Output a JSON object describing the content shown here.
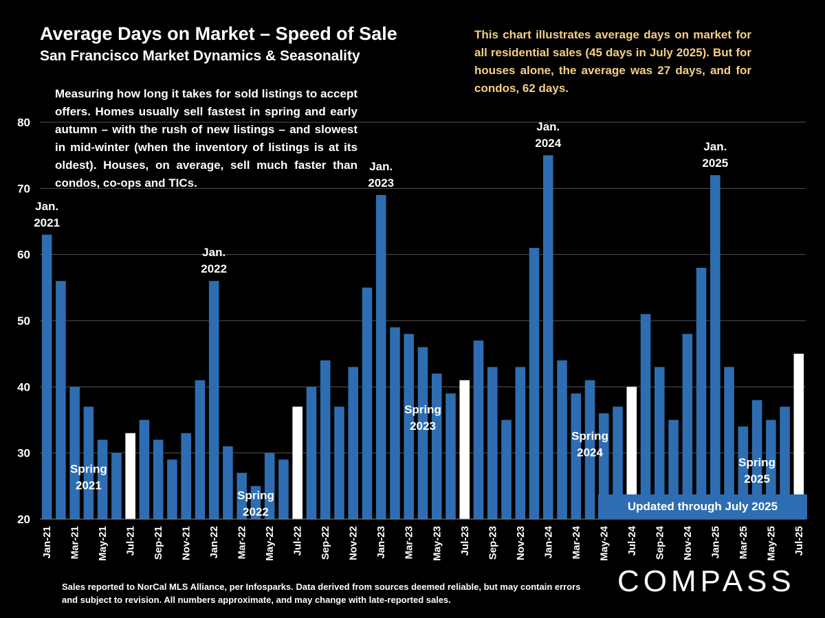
{
  "header": {
    "title": "Average Days on Market – Speed of Sale",
    "subtitle": "San Francisco Market Dynamics & Seasonality"
  },
  "summary": "This chart illustrates average days on market for all residential sales (45 days in July 2025). But for houses alone, the average was 27 days, and for condos, 62 days.",
  "description": "Measuring how long it takes for sold listings to accept offers. Homes usually sell fastest in spring and early autumn – with the rush of new listings – and slowest in mid-winter (when the inventory of listings is at its oldest). Houses, on average, sell much faster than condos, co-ops and TICs.",
  "footnote": "Sales reported to NorCal MLS Alliance, per Infosparks. Data derived from sources deemed reliable, but may contain errors and subject to revision. All numbers approximate, and may change with late-reported sales.",
  "logo": "COMPASS",
  "updated_label": "Updated through July 2025",
  "colors": {
    "bar": "#2e6db1",
    "highlight": "#ffffff",
    "summary_text": "#f6cf84",
    "background": "#000000",
    "grid": "#555555"
  },
  "chart_data": {
    "type": "bar",
    "ylim": [
      20,
      80
    ],
    "yticks": [
      20,
      30,
      40,
      50,
      60,
      70,
      80
    ],
    "grid": true,
    "categories": [
      "Jan-21",
      "Feb-21",
      "Mar-21",
      "Apr-21",
      "May-21",
      "Jun-21",
      "Jul-21",
      "Aug-21",
      "Sep-21",
      "Oct-21",
      "Nov-21",
      "Dec-21",
      "Jan-22",
      "Feb-22",
      "Mar-22",
      "Apr-22",
      "May-22",
      "Jun-22",
      "Jul-22",
      "Aug-22",
      "Sep-22",
      "Oct-22",
      "Nov-22",
      "Dec-22",
      "Jan-23",
      "Feb-23",
      "Mar-23",
      "Apr-23",
      "May-23",
      "Jun-23",
      "Jul-23",
      "Aug-23",
      "Sep-23",
      "Oct-23",
      "Nov-23",
      "Dec-23",
      "Jan-24",
      "Feb-24",
      "Mar-24",
      "Apr-24",
      "May-24",
      "Jun-24",
      "Jul-24",
      "Aug-24",
      "Sep-24",
      "Oct-24",
      "Nov-24",
      "Dec-24",
      "Jan-25",
      "Feb-25",
      "Mar-25",
      "Apr-25",
      "May-25",
      "Jun-25",
      "Jul-25"
    ],
    "values": [
      63,
      56,
      40,
      37,
      32,
      30,
      33,
      35,
      32,
      29,
      33,
      41,
      56,
      31,
      27,
      25,
      30,
      29,
      37,
      40,
      44,
      37,
      43,
      55,
      69,
      49,
      48,
      46,
      42,
      39,
      41,
      47,
      43,
      35,
      43,
      61,
      75,
      44,
      39,
      41,
      36,
      37,
      40,
      51,
      43,
      35,
      48,
      58,
      72,
      43,
      34,
      38,
      35,
      37,
      45
    ],
    "highlight_categories": [
      "Jul-21",
      "Jul-22",
      "Jul-23",
      "Jul-24",
      "Jul-25"
    ],
    "annotations": [
      {
        "lines": [
          "Jan.",
          "2021"
        ],
        "category": "Jan-21",
        "placement": "above"
      },
      {
        "lines": [
          "Jan.",
          "2022"
        ],
        "category": "Jan-22",
        "placement": "above"
      },
      {
        "lines": [
          "Jan.",
          "2023"
        ],
        "category": "Jan-23",
        "placement": "above"
      },
      {
        "lines": [
          "Jan.",
          "2024"
        ],
        "category": "Jan-24",
        "placement": "above"
      },
      {
        "lines": [
          "Jan.",
          "2025"
        ],
        "category": "Jan-25",
        "placement": "above"
      },
      {
        "lines": [
          "Spring",
          "2021"
        ],
        "category": "Apr-21",
        "y": 27
      },
      {
        "lines": [
          "Spring",
          "2022"
        ],
        "category": "Apr-22",
        "y": 23
      },
      {
        "lines": [
          "Spring",
          "2023"
        ],
        "category": "Apr-23",
        "y": 36
      },
      {
        "lines": [
          "Spring",
          "2024"
        ],
        "category": "Apr-24",
        "y": 32
      },
      {
        "lines": [
          "Spring",
          "2025"
        ],
        "category": "Apr-25",
        "y": 28
      }
    ]
  }
}
